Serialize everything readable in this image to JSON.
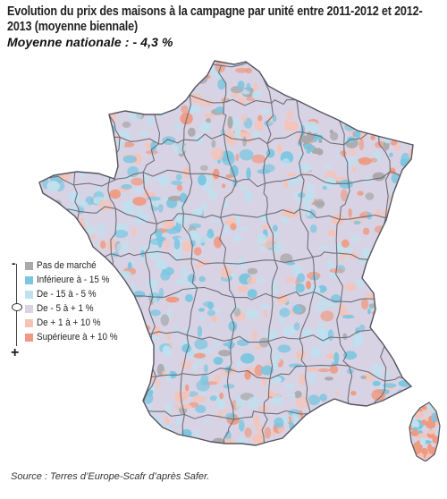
{
  "title": "Evolution du prix des maisons à la campagne par unité entre 2011-2012 et 2012-2013 (moyenne biennale)",
  "subtitle": "Moyenne nationale : - 4,3 %",
  "legend": {
    "scale_minus": "-",
    "scale_plus": "+",
    "items": [
      {
        "label": "Pas de marché",
        "color": "#a9a9ab"
      },
      {
        "label": "Inférieure à - 15 %",
        "color": "#7cc6e0"
      },
      {
        "label": "De - 15 à - 5 %",
        "color": "#bfe0ef"
      },
      {
        "label": "De - 5 à + 1 %",
        "color": "#d8d3e4"
      },
      {
        "label": "De + 1 à + 10 %",
        "color": "#f6c3b6"
      },
      {
        "label": "Supérieure à + 10 %",
        "color": "#ef9a82"
      }
    ]
  },
  "map": {
    "base_color": "#d8d3e4",
    "border_color": "#6f6f78",
    "coast_color": "#555560"
  },
  "source": "Source : Terres d’Europe-Scafr d’après Safer."
}
